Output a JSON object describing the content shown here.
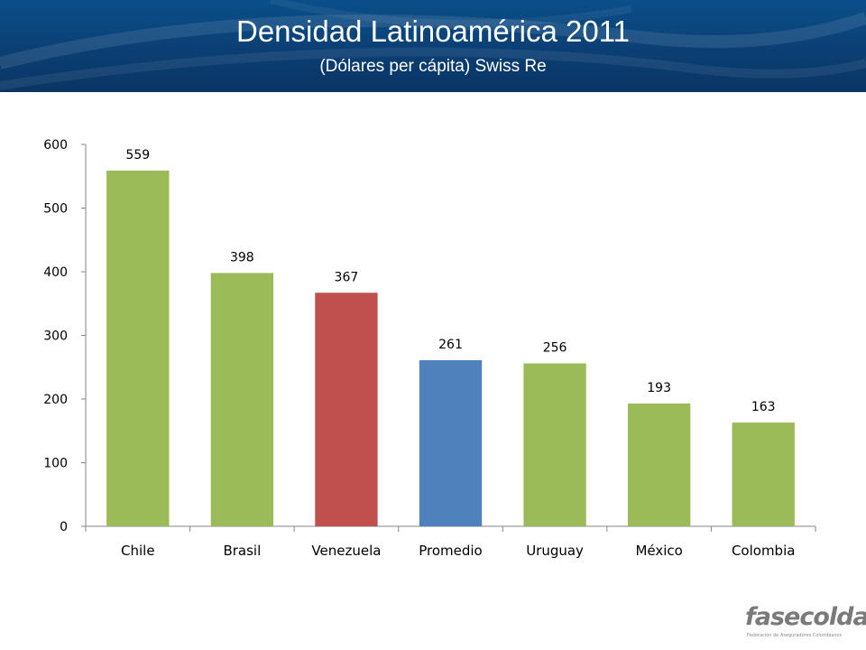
{
  "header": {
    "title": "Densidad Latinoamérica 2011",
    "subtitle": "(Dólares per cápita) Swiss Re"
  },
  "logo": {
    "name": "fasecolda",
    "tagline": "Federación de Aseguradores Colombianos"
  },
  "chart_data": {
    "type": "bar",
    "categories": [
      "Chile",
      "Brasil",
      "Venezuela",
      "Promedio",
      "Uruguay",
      "México",
      "Colombia"
    ],
    "values": [
      559,
      398,
      367,
      261,
      256,
      193,
      163
    ],
    "colors": [
      "#9bbb59",
      "#9bbb59",
      "#c0504d",
      "#4f81bd",
      "#9bbb59",
      "#9bbb59",
      "#9bbb59"
    ],
    "ylim": [
      0,
      600
    ],
    "yticks": [
      0,
      100,
      200,
      300,
      400,
      500,
      600
    ],
    "xlabel": "",
    "ylabel": "",
    "grid": false,
    "data_labels": true
  }
}
